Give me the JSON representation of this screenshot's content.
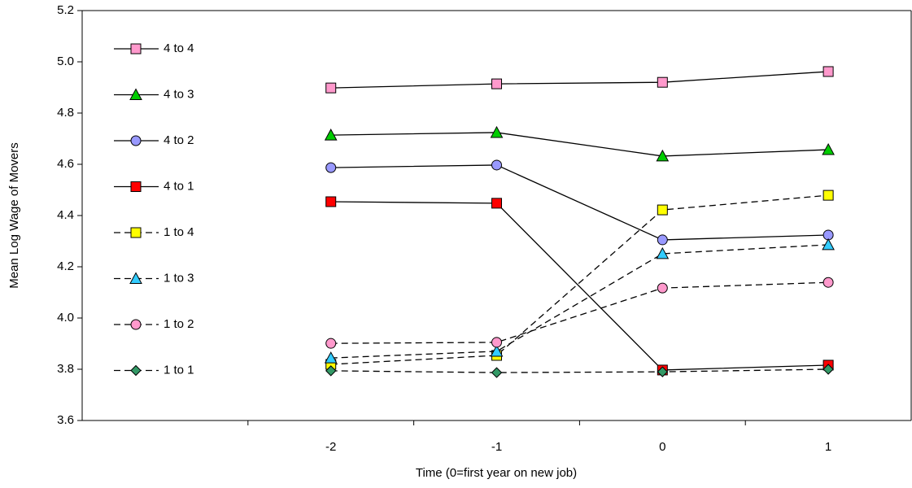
{
  "chart_data": {
    "type": "line",
    "y_label": "Mean Log Wage of Movers",
    "x_label": "Time (0=first year on new job)",
    "categories": [
      null,
      "-2",
      "-1",
      "0",
      "1"
    ],
    "ylim": [
      3.6,
      5.2
    ],
    "yticks": [
      3.6,
      3.8,
      {
        "value": 4.0,
        "label": "4.0"
      },
      4.2,
      4.4,
      4.6,
      4.8,
      {
        "value": 5.0,
        "label": "5.0"
      },
      5.2
    ],
    "legend": "upper left",
    "series": [
      {
        "name": "4 to 4",
        "color": "#ff99cc",
        "marker": "square",
        "dash": "solid",
        "values": [
          null,
          4.898,
          4.914,
          4.92,
          4.962
        ]
      },
      {
        "name": "4 to 3",
        "color": "#00cc00",
        "marker": "triangle",
        "dash": "solid",
        "values": [
          null,
          4.714,
          4.724,
          4.632,
          4.657
        ]
      },
      {
        "name": "4 to 2",
        "color": "#9999ff",
        "marker": "circle",
        "dash": "solid",
        "values": [
          null,
          4.587,
          4.597,
          4.305,
          4.324
        ]
      },
      {
        "name": "4 to 1",
        "color": "#ff0000",
        "marker": "square",
        "dash": "solid",
        "values": [
          null,
          4.454,
          4.448,
          3.797,
          3.816
        ]
      },
      {
        "name": "1 to 4",
        "color": "#ffff00",
        "marker": "square",
        "dash": "dashed",
        "values": [
          null,
          3.819,
          3.854,
          4.422,
          4.479
        ]
      },
      {
        "name": "1 to 3",
        "color": "#33ccff",
        "marker": "triangle",
        "dash": "dashed",
        "values": [
          null,
          3.844,
          3.87,
          4.251,
          4.286
        ]
      },
      {
        "name": "1 to 2",
        "color": "#ff99cc",
        "marker": "circle",
        "dash": "dashed",
        "values": [
          null,
          3.901,
          3.905,
          4.117,
          4.139
        ]
      },
      {
        "name": "1 to 1",
        "color": "#339966",
        "marker": "diamond",
        "dash": "dashed",
        "values": [
          null,
          3.794,
          3.787,
          3.79,
          3.8
        ]
      }
    ]
  }
}
